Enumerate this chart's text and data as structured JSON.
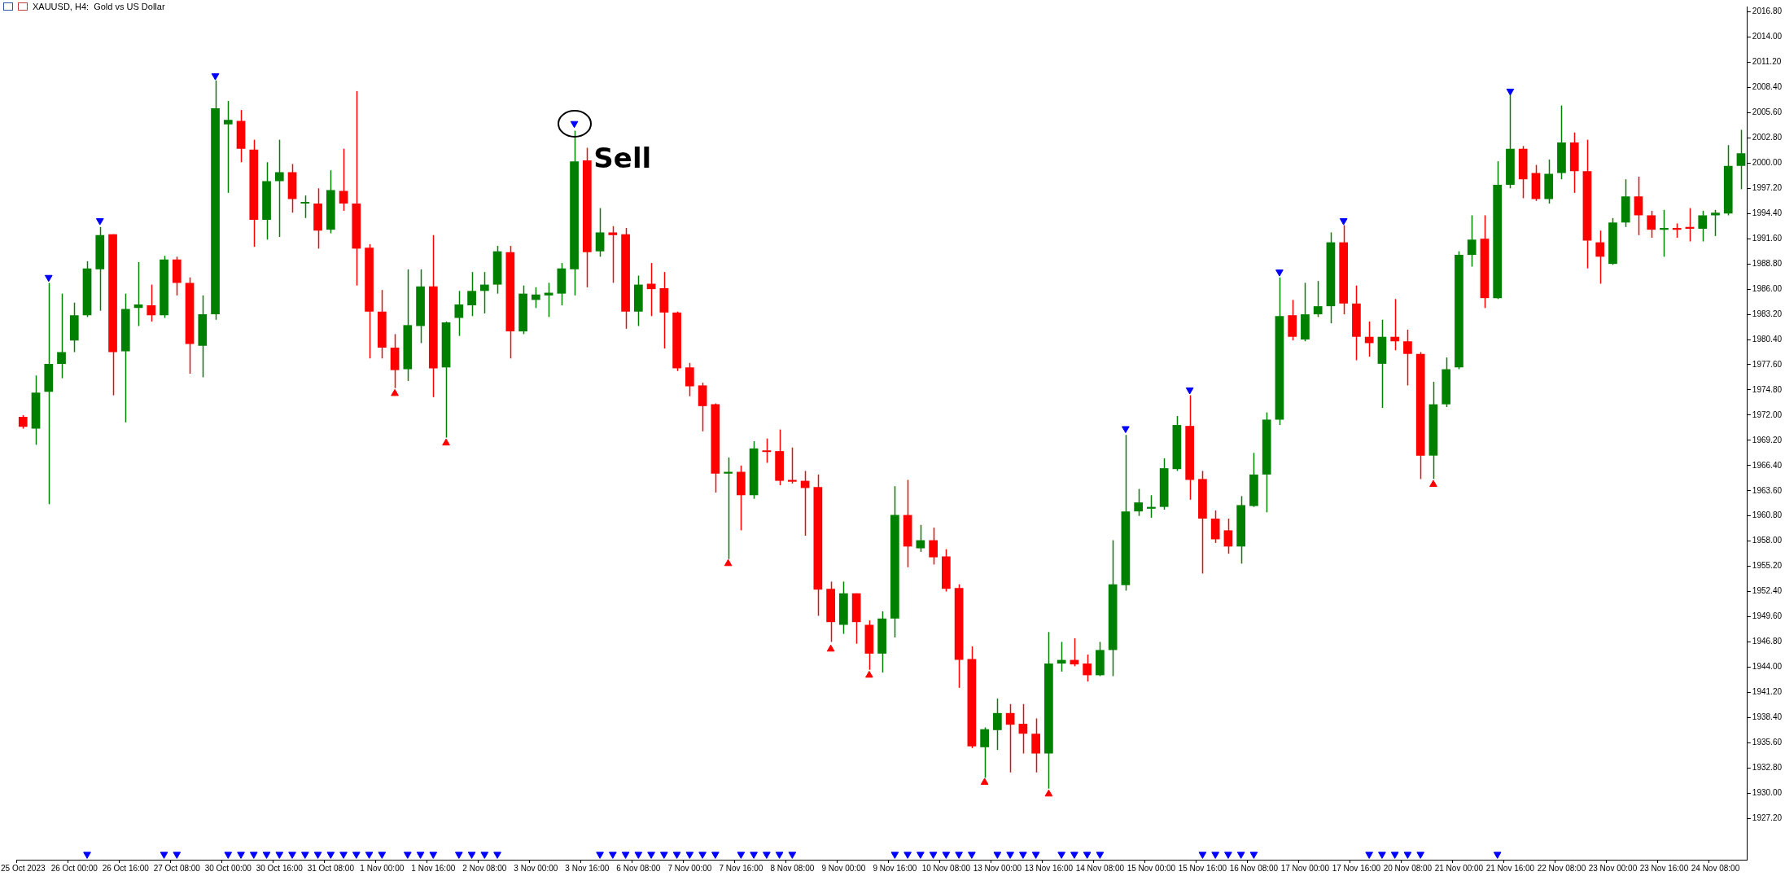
{
  "chart_data": {
    "type": "candlestick",
    "title": "XAUUSD, H4:  Gold vs US Dollar",
    "categories": [
      "25 Oct 2023",
      null,
      null,
      null,
      "26 Oct 00:00",
      null,
      null,
      null,
      "26 Oct 16:00",
      null,
      null,
      null,
      "27 Oct 08:00",
      null,
      null,
      null,
      "30 Oct 00:00",
      null,
      null,
      null,
      "30 Oct 16:00",
      null,
      null,
      null,
      "31 Oct 08:00",
      null,
      null,
      null,
      "1 Nov 00:00",
      null,
      null,
      null,
      "1 Nov 16:00",
      null,
      null,
      null,
      "2 Nov 08:00",
      null,
      null,
      null,
      "3 Nov 00:00",
      null,
      null,
      null,
      "3 Nov 16:00",
      null,
      null,
      null,
      "6 Nov 08:00",
      null,
      null,
      null,
      "7 Nov 00:00",
      null,
      null,
      null,
      "7 Nov 16:00",
      null,
      null,
      null,
      "8 Nov 08:00",
      null,
      null,
      null,
      "9 Nov 00:00",
      null,
      null,
      null,
      "9 Nov 16:00",
      null,
      null,
      null,
      "10 Nov 08:00",
      null,
      null,
      null,
      "13 Nov 00:00",
      null,
      null,
      null,
      "13 Nov 16:00",
      null,
      null,
      null,
      "14 Nov 08:00",
      null,
      null,
      null,
      "15 Nov 00:00",
      null,
      null,
      null,
      "15 Nov 16:00",
      null,
      null,
      null,
      "16 Nov 08:00",
      null,
      null,
      null,
      "17 Nov 00:00",
      null,
      null,
      null,
      "17 Nov 16:00",
      null,
      null,
      null,
      "20 Nov 08:00",
      null,
      null,
      null,
      "21 Nov 00:00",
      null,
      null,
      null,
      "21 Nov 16:00",
      null,
      null,
      null,
      "22 Nov 08:00",
      null,
      null,
      null,
      "23 Nov 00:00",
      null,
      null,
      null,
      "23 Nov 16:00",
      null,
      null,
      null,
      "24 Nov 08:00",
      null,
      null
    ],
    "ohlc": [
      [
        1971.8,
        1972.0,
        1970.5,
        1970.7
      ],
      [
        1970.5,
        1976.4,
        1968.7,
        1974.5
      ],
      [
        1974.6,
        1986.7,
        1962.1,
        1977.7
      ],
      [
        1977.7,
        1985.5,
        1976.1,
        1979.0
      ],
      [
        1980.3,
        1984.5,
        1979.0,
        1983.1
      ],
      [
        1983.1,
        1989.1,
        1982.9,
        1988.3
      ],
      [
        1988.2,
        1992.9,
        1983.6,
        1992.0
      ],
      [
        1992.1,
        1992.1,
        1974.2,
        1979.0
      ],
      [
        1979.1,
        1985.5,
        1971.2,
        1983.8
      ],
      [
        1983.9,
        1989.0,
        1981.9,
        1984.3
      ],
      [
        1984.2,
        1986.5,
        1982.4,
        1983.1
      ],
      [
        1983.1,
        1989.7,
        1982.8,
        1989.3
      ],
      [
        1989.3,
        1989.6,
        1985.3,
        1986.7
      ],
      [
        1986.7,
        1987.3,
        1976.6,
        1979.9
      ],
      [
        1979.7,
        1985.3,
        1976.2,
        1983.2
      ],
      [
        1983.2,
        2009.2,
        1982.6,
        2006.1
      ],
      [
        2004.3,
        2006.9,
        1996.7,
        2004.8
      ],
      [
        2004.7,
        2005.9,
        2000.1,
        2001.6
      ],
      [
        2001.5,
        2002.6,
        1990.7,
        1993.7
      ],
      [
        1993.7,
        2000.1,
        1991.5,
        1998.0
      ],
      [
        1998.0,
        2002.6,
        1991.8,
        1999.0
      ],
      [
        1999.0,
        1999.9,
        1994.5,
        1996.0
      ],
      [
        1995.5,
        1996.4,
        1993.9,
        1995.6
      ],
      [
        1995.5,
        1997.2,
        1990.5,
        1992.5
      ],
      [
        1992.6,
        1999.2,
        1992.2,
        1997.0
      ],
      [
        1996.9,
        2001.6,
        1994.7,
        1995.5
      ],
      [
        1995.5,
        2008.0,
        1986.4,
        1990.5
      ],
      [
        1990.6,
        1991.0,
        1978.3,
        1983.5
      ],
      [
        1983.5,
        1985.9,
        1978.3,
        1979.5
      ],
      [
        1979.5,
        1981.0,
        1975.0,
        1977.0
      ],
      [
        1977.1,
        1988.2,
        1975.8,
        1982.0
      ],
      [
        1981.9,
        1988.2,
        1980.0,
        1986.3
      ],
      [
        1986.3,
        1992.0,
        1974.0,
        1977.2
      ],
      [
        1977.3,
        1982.4,
        1969.5,
        1982.3
      ],
      [
        1982.8,
        1985.8,
        1980.8,
        1984.3
      ],
      [
        1984.2,
        1987.9,
        1983.0,
        1985.8
      ],
      [
        1985.8,
        1987.9,
        1983.3,
        1986.5
      ],
      [
        1986.5,
        1990.8,
        1985.5,
        1990.2
      ],
      [
        1990.1,
        1990.8,
        1978.3,
        1981.3
      ],
      [
        1981.3,
        1986.4,
        1981.0,
        1985.5
      ],
      [
        1984.8,
        1986.2,
        1983.9,
        1985.4
      ],
      [
        1985.3,
        1986.7,
        1982.9,
        1985.6
      ],
      [
        1985.5,
        1988.9,
        1984.2,
        1988.3
      ],
      [
        1988.2,
        2003.6,
        1985.3,
        2000.2
      ],
      [
        2000.3,
        2001.7,
        1986.2,
        1990.1
      ],
      [
        1990.2,
        1995.0,
        1989.6,
        1992.3
      ],
      [
        1992.3,
        1993.0,
        1986.7,
        1992.0
      ],
      [
        1992.1,
        1992.8,
        1981.6,
        1983.5
      ],
      [
        1983.5,
        1987.5,
        1981.9,
        1986.5
      ],
      [
        1986.6,
        1988.9,
        1983.0,
        1986.0
      ],
      [
        1986.1,
        1987.9,
        1979.4,
        1983.4
      ],
      [
        1983.4,
        1983.5,
        1976.9,
        1977.2
      ],
      [
        1977.3,
        1977.8,
        1974.1,
        1975.2
      ],
      [
        1975.3,
        1975.6,
        1970.2,
        1973.0
      ],
      [
        1973.2,
        1973.3,
        1963.4,
        1965.5
      ],
      [
        1965.5,
        1967.3,
        1956.0,
        1965.7
      ],
      [
        1965.7,
        1966.4,
        1959.2,
        1963.1
      ],
      [
        1963.1,
        1969.1,
        1962.7,
        1968.3
      ],
      [
        1968.0,
        1969.4,
        1966.7,
        1967.9
      ],
      [
        1968.0,
        1970.4,
        1964.2,
        1964.7
      ],
      [
        1964.8,
        1968.4,
        1964.4,
        1964.6
      ],
      [
        1964.7,
        1965.8,
        1958.6,
        1963.9
      ],
      [
        1964.0,
        1965.4,
        1949.7,
        1952.6
      ],
      [
        1952.7,
        1953.5,
        1946.8,
        1949.0
      ],
      [
        1948.7,
        1953.5,
        1947.7,
        1952.2
      ],
      [
        1952.2,
        1952.2,
        1946.6,
        1949.0
      ],
      [
        1948.7,
        1949.2,
        1943.7,
        1945.5
      ],
      [
        1945.5,
        1950.2,
        1943.4,
        1949.4
      ],
      [
        1949.4,
        1964.1,
        1947.3,
        1960.9
      ],
      [
        1960.9,
        1964.8,
        1955.1,
        1957.4
      ],
      [
        1957.2,
        1959.8,
        1956.8,
        1958.1
      ],
      [
        1958.1,
        1959.5,
        1955.4,
        1956.2
      ],
      [
        1956.3,
        1957.1,
        1952.4,
        1952.7
      ],
      [
        1952.8,
        1953.2,
        1941.7,
        1944.8
      ],
      [
        1944.9,
        1946.3,
        1935.0,
        1935.2
      ],
      [
        1935.1,
        1937.3,
        1931.7,
        1937.1
      ],
      [
        1937.0,
        1940.5,
        1934.8,
        1938.9
      ],
      [
        1938.9,
        1939.9,
        1932.3,
        1937.6
      ],
      [
        1937.7,
        1939.9,
        1934.4,
        1936.6
      ],
      [
        1936.6,
        1938.3,
        1932.3,
        1934.4
      ],
      [
        1934.4,
        1947.9,
        1930.5,
        1944.4
      ],
      [
        1944.4,
        1946.8,
        1943.5,
        1944.8
      ],
      [
        1944.8,
        1947.2,
        1944.1,
        1944.3
      ],
      [
        1944.4,
        1945.4,
        1942.4,
        1943.1
      ],
      [
        1943.1,
        1946.8,
        1943.0,
        1945.9
      ],
      [
        1945.9,
        1958.1,
        1943.0,
        1953.2
      ],
      [
        1953.1,
        1969.8,
        1952.5,
        1961.3
      ],
      [
        1961.3,
        1963.8,
        1960.8,
        1962.3
      ],
      [
        1961.6,
        1963.1,
        1960.6,
        1961.8
      ],
      [
        1961.8,
        1967.2,
        1961.5,
        1966.1
      ],
      [
        1966.0,
        1971.9,
        1965.8,
        1970.9
      ],
      [
        1970.8,
        1974.2,
        1962.6,
        1964.8
      ],
      [
        1964.9,
        1965.8,
        1954.4,
        1960.5
      ],
      [
        1960.5,
        1961.4,
        1957.8,
        1958.2
      ],
      [
        1959.2,
        1960.5,
        1956.6,
        1957.4
      ],
      [
        1957.4,
        1963.0,
        1955.5,
        1962.0
      ],
      [
        1961.9,
        1967.8,
        1961.8,
        1965.4
      ],
      [
        1965.4,
        1972.3,
        1961.2,
        1971.5
      ],
      [
        1971.5,
        1987.3,
        1970.9,
        1983.0
      ],
      [
        1983.1,
        1984.8,
        1980.3,
        1980.7
      ],
      [
        1980.4,
        1986.7,
        1980.2,
        1983.2
      ],
      [
        1983.2,
        1986.9,
        1982.9,
        1984.1
      ],
      [
        1984.1,
        1992.3,
        1982.2,
        1991.2
      ],
      [
        1991.2,
        1993.1,
        1983.2,
        1984.4
      ],
      [
        1984.4,
        1986.4,
        1978.1,
        1980.7
      ],
      [
        1980.7,
        1982.4,
        1978.5,
        1980.0
      ],
      [
        1977.7,
        1982.6,
        1972.8,
        1980.7
      ],
      [
        1980.7,
        1984.9,
        1979.2,
        1980.2
      ],
      [
        1980.2,
        1981.5,
        1975.3,
        1978.8
      ],
      [
        1978.8,
        1979.0,
        1964.9,
        1967.5
      ],
      [
        1967.5,
        1975.7,
        1964.9,
        1973.2
      ],
      [
        1973.2,
        1978.4,
        1972.9,
        1977.1
      ],
      [
        1977.3,
        1990.2,
        1977.1,
        1989.8
      ],
      [
        1989.8,
        1994.2,
        1988.5,
        1991.5
      ],
      [
        1991.6,
        1994.2,
        1983.9,
        1985.0
      ],
      [
        1985.0,
        2000.2,
        1984.9,
        1997.6
      ],
      [
        1997.6,
        2007.6,
        1997.2,
        2001.6
      ],
      [
        2001.6,
        2001.9,
        1996.1,
        1998.2
      ],
      [
        1998.9,
        1999.8,
        1995.8,
        1996.0
      ],
      [
        1996.0,
        2000.4,
        1995.5,
        1998.8
      ],
      [
        1998.9,
        2006.4,
        1998.2,
        2002.3
      ],
      [
        2002.3,
        2003.4,
        1996.7,
        1999.1
      ],
      [
        1999.1,
        2002.6,
        1988.3,
        1991.4
      ],
      [
        1991.2,
        1992.5,
        1986.6,
        1989.6
      ],
      [
        1988.8,
        1993.9,
        1988.7,
        1993.4
      ],
      [
        1993.4,
        1998.2,
        1992.9,
        1996.3
      ],
      [
        1996.3,
        1998.5,
        1992.0,
        1994.2
      ],
      [
        1994.2,
        1994.7,
        1991.7,
        1992.6
      ],
      [
        1992.6,
        1994.8,
        1989.6,
        1992.8
      ],
      [
        1992.8,
        1993.3,
        1991.7,
        1992.6
      ],
      [
        1992.9,
        1995.0,
        1991.3,
        1992.7
      ],
      [
        1992.7,
        1994.7,
        1991.3,
        1994.2
      ],
      [
        1994.2,
        1994.8,
        1991.9,
        1994.5
      ],
      [
        1994.4,
        2002.0,
        1994.2,
        1999.7
      ],
      [
        1999.7,
        2003.7,
        1997.1,
        2001.1
      ]
    ],
    "colors": [
      "#ff0000",
      "#008000",
      "#008000",
      "#008000",
      "#008000",
      "#008000",
      "#008000",
      "#ff0000",
      "#008000",
      "#008000",
      "#ff0000",
      "#008000",
      "#ff0000",
      "#ff0000",
      "#008000",
      "#008000",
      "#008000",
      "#ff0000",
      "#ff0000",
      "#008000",
      "#008000",
      "#ff0000",
      "#008000",
      "#ff0000",
      "#008000",
      "#ff0000",
      "#ff0000",
      "#ff0000",
      "#ff0000",
      "#ff0000",
      "#008000",
      "#008000",
      "#ff0000",
      "#008000",
      "#008000",
      "#008000",
      "#008000",
      "#008000",
      "#ff0000",
      "#008000",
      "#008000",
      "#008000",
      "#008000",
      "#008000",
      "#ff0000",
      "#008000",
      "#ff0000",
      "#ff0000",
      "#008000",
      "#ff0000",
      "#ff0000",
      "#ff0000",
      "#ff0000",
      "#ff0000",
      "#ff0000",
      "#008000",
      "#ff0000",
      "#008000",
      "#ff0000",
      "#ff0000",
      "#ff0000",
      "#ff0000",
      "#ff0000",
      "#ff0000",
      "#008000",
      "#ff0000",
      "#ff0000",
      "#008000",
      "#008000",
      "#ff0000",
      "#008000",
      "#ff0000",
      "#ff0000",
      "#ff0000",
      "#ff0000",
      "#008000",
      "#008000",
      "#ff0000",
      "#ff0000",
      "#ff0000",
      "#008000",
      "#008000",
      "#ff0000",
      "#ff0000",
      "#008000",
      "#008000",
      "#008000",
      "#008000",
      "#008000",
      "#008000",
      "#008000",
      "#ff0000",
      "#ff0000",
      "#ff0000",
      "#ff0000",
      "#008000",
      "#008000",
      "#008000",
      "#008000",
      "#ff0000",
      "#008000",
      "#008000",
      "#008000",
      "#ff0000",
      "#ff0000",
      "#ff0000",
      "#008000",
      "#ff0000",
      "#ff0000",
      "#ff0000",
      "#008000",
      "#008000",
      "#008000",
      "#008000",
      "#ff0000",
      "#008000",
      "#008000",
      "#ff0000",
      "#ff0000",
      "#008000",
      "#008000",
      "#ff0000",
      "#ff0000",
      "#ff0000",
      "#008000",
      "#008000",
      "#ff0000",
      "#ff0000",
      "#008000",
      "#ff0000",
      "#ff0000",
      "#008000",
      "#008000",
      "#008000",
      "#008000"
    ],
    "series": [
      {
        "type": "scatter",
        "color": "#0000ff",
        "marker": "triangle-down",
        "values": [
          null,
          null,
          1987.3,
          null,
          null,
          null,
          1993.6,
          null,
          null,
          null,
          null,
          null,
          null,
          null,
          null,
          2009.7,
          null,
          null,
          null,
          null,
          null,
          null,
          null,
          null,
          null,
          null,
          null,
          null,
          null,
          null,
          null,
          null,
          null,
          null,
          null,
          null,
          null,
          null,
          null,
          null,
          null,
          null,
          null,
          2004.4,
          null,
          null,
          null,
          null,
          null,
          null,
          null,
          null,
          null,
          null,
          null,
          null,
          null,
          null,
          null,
          null,
          null,
          null,
          null,
          null,
          null,
          null,
          null,
          null,
          null,
          null,
          null,
          null,
          null,
          null,
          null,
          null,
          null,
          null,
          null,
          null,
          null,
          null,
          null,
          null,
          null,
          null,
          1970.5,
          null,
          null,
          null,
          null,
          1974.8,
          null,
          null,
          null,
          null,
          null,
          null,
          1987.9,
          null,
          null,
          null,
          null,
          1993.6,
          null,
          null,
          null,
          null,
          null,
          null,
          null,
          null,
          null,
          null,
          null,
          null,
          2008.0,
          null,
          null,
          null,
          null,
          null,
          null,
          null,
          null,
          null,
          null,
          null,
          null,
          null,
          null,
          null,
          null,
          null,
          null
        ]
      },
      {
        "type": "scatter",
        "color": "#ff0000",
        "marker": "triangle",
        "values": [
          null,
          null,
          null,
          null,
          null,
          null,
          null,
          null,
          null,
          null,
          null,
          null,
          null,
          null,
          null,
          null,
          null,
          null,
          null,
          null,
          null,
          null,
          null,
          null,
          null,
          null,
          null,
          null,
          null,
          1974.4,
          null,
          null,
          null,
          1968.9,
          null,
          null,
          null,
          null,
          null,
          null,
          null,
          null,
          null,
          null,
          null,
          null,
          null,
          null,
          null,
          null,
          null,
          null,
          null,
          null,
          null,
          1955.5,
          null,
          null,
          null,
          null,
          null,
          null,
          null,
          1946.0,
          null,
          null,
          1943.1,
          null,
          null,
          null,
          null,
          null,
          null,
          null,
          null,
          1931.2,
          null,
          null,
          null,
          null,
          1929.9,
          null,
          null,
          null,
          null,
          null,
          null,
          null,
          null,
          null,
          null,
          null,
          null,
          null,
          null,
          null,
          null,
          null,
          null,
          null,
          null,
          null,
          null,
          null,
          null,
          null,
          null,
          null,
          null,
          null,
          1964.3,
          null,
          null,
          null,
          null,
          null,
          null,
          null,
          null,
          null,
          null,
          null,
          null,
          null,
          null,
          null,
          null,
          null,
          null,
          null,
          null,
          null,
          null,
          null,
          null
        ]
      },
      {
        "type": "scatter",
        "color": "#0000ff",
        "marker": "triangle-down",
        "values": [
          null,
          null,
          null,
          null,
          null,
          1923.2,
          null,
          null,
          null,
          null,
          null,
          1923.2,
          1923.2,
          null,
          null,
          null,
          1923.2,
          1923.2,
          1923.2,
          1923.2,
          1923.2,
          1923.2,
          1923.2,
          1923.2,
          1923.2,
          1923.2,
          1923.2,
          1923.2,
          1923.2,
          null,
          1923.2,
          1923.2,
          1923.2,
          null,
          1923.2,
          1923.2,
          1923.2,
          1923.2,
          null,
          null,
          null,
          null,
          null,
          null,
          null,
          1923.2,
          1923.2,
          1923.2,
          1923.2,
          1923.2,
          1923.2,
          1923.2,
          1923.2,
          1923.2,
          1923.2,
          null,
          1923.2,
          1923.2,
          1923.2,
          1923.2,
          1923.2,
          null,
          null,
          null,
          null,
          null,
          null,
          null,
          1923.2,
          1923.2,
          1923.2,
          1923.2,
          1923.2,
          1923.2,
          1923.2,
          null,
          1923.2,
          1923.2,
          1923.2,
          1923.2,
          null,
          1923.2,
          1923.2,
          1923.2,
          1923.2,
          null,
          null,
          null,
          null,
          null,
          null,
          null,
          1923.2,
          1923.2,
          1923.2,
          1923.2,
          1923.2,
          null,
          null,
          null,
          null,
          null,
          null,
          null,
          null,
          1923.2,
          1923.2,
          1923.2,
          1923.2,
          1923.2,
          null,
          null,
          null,
          null,
          null,
          1923.2,
          null,
          null,
          null,
          null,
          null,
          null,
          null,
          null,
          null,
          null,
          null,
          null,
          null,
          null,
          null,
          null,
          null,
          null,
          null
        ]
      }
    ],
    "annotations": [
      "Sell"
    ],
    "ylim": [
      1922.6,
      2017.4
    ],
    "yticks": [
      {
        "value": 1927.2,
        "label": "1927.20"
      },
      {
        "value": 1930,
        "label": "1930.00"
      },
      {
        "value": 1932.8,
        "label": "1932.80"
      },
      {
        "value": 1935.6,
        "label": "1935.60"
      },
      {
        "value": 1938.4,
        "label": "1938.40"
      },
      {
        "value": 1941.2,
        "label": "1941.20"
      },
      {
        "value": 1944,
        "label": "1944.00"
      },
      {
        "value": 1946.8,
        "label": "1946.80"
      },
      {
        "value": 1949.6,
        "label": "1949.60"
      },
      {
        "value": 1952.4,
        "label": "1952.40"
      },
      {
        "value": 1955.2,
        "label": "1955.20"
      },
      {
        "value": 1958,
        "label": "1958.00"
      },
      {
        "value": 1960.8,
        "label": "1960.80"
      },
      {
        "value": 1963.6,
        "label": "1963.60"
      },
      {
        "value": 1966.4,
        "label": "1966.40"
      },
      {
        "value": 1969.2,
        "label": "1969.20"
      },
      {
        "value": 1972,
        "label": "1972.00"
      },
      {
        "value": 1974.8,
        "label": "1974.80"
      },
      {
        "value": 1977.6,
        "label": "1977.60"
      },
      {
        "value": 1980.4,
        "label": "1980.40"
      },
      {
        "value": 1983.2,
        "label": "1983.20"
      },
      {
        "value": 1986,
        "label": "1986.00"
      },
      {
        "value": 1988.8,
        "label": "1988.80"
      },
      {
        "value": 1991.6,
        "label": "1991.60"
      },
      {
        "value": 1994.4,
        "label": "1994.40"
      },
      {
        "value": 1997.2,
        "label": "1997.20"
      },
      {
        "value": 2000,
        "label": "2000.00"
      },
      {
        "value": 2002.8,
        "label": "2002.80"
      },
      {
        "value": 2005.6,
        "label": "2005.60"
      },
      {
        "value": 2008.4,
        "label": "2008.40"
      },
      {
        "value": 2011.2,
        "label": "2011.20"
      },
      {
        "value": 2014,
        "label": "2014.00"
      },
      {
        "value": 2016.8,
        "label": "2016.80"
      }
    ],
    "grid": false,
    "legend": false
  }
}
